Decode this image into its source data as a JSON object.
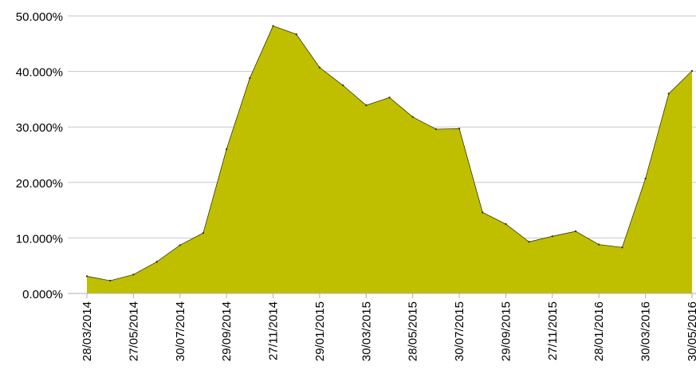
{
  "chart_data": {
    "type": "area",
    "title": "",
    "xlabel": "",
    "ylabel": "",
    "ylim": [
      0,
      50
    ],
    "y_ticks": [
      0,
      10,
      20,
      30,
      40,
      50
    ],
    "y_tick_labels": [
      "0.000%",
      "10.000%",
      "20.000%",
      "30.000%",
      "40.000%",
      "50.000%"
    ],
    "grid": "horizontal",
    "legend": "none",
    "x_tick_labels": [
      "28/03/2014",
      "27/05/2014",
      "30/07/2014",
      "29/09/2014",
      "27/11/2014",
      "29/01/2015",
      "30/03/2015",
      "28/05/2015",
      "30/07/2015",
      "29/09/2015",
      "27/11/2015",
      "28/01/2016",
      "30/03/2016",
      "30/05/2016"
    ],
    "x_tick_positions": [
      0,
      2,
      4,
      6,
      8,
      10,
      12,
      14,
      16,
      18,
      20,
      22,
      24,
      26
    ],
    "series": [
      {
        "color": "#bfbf00",
        "values": [
          3.1,
          2.3,
          3.4,
          5.7,
          8.7,
          10.9,
          26.0,
          38.8,
          48.2,
          46.7,
          40.7,
          37.5,
          33.9,
          35.3,
          31.8,
          29.6,
          29.7,
          14.6,
          12.5,
          9.3,
          10.3,
          11.2,
          8.8,
          8.3,
          20.7,
          36.0,
          40.1
        ]
      }
    ]
  }
}
